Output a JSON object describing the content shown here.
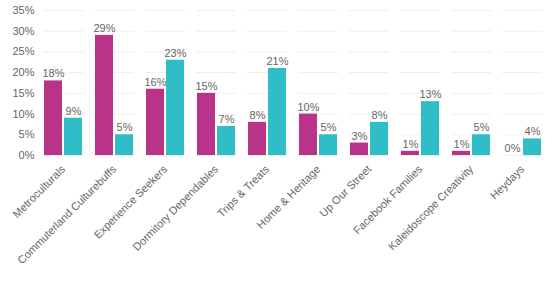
{
  "chart_data": {
    "type": "bar",
    "categories": [
      "Metroculturals",
      "Commuterland Culturebuffs",
      "Experience Seekers",
      "Dormitory Dependables",
      "Trips & Treats",
      "Home & Heritage",
      "Up Our Street",
      "Facebook Families",
      "Kaleidoscope Creativity",
      "Heydays"
    ],
    "series": [
      {
        "color": "#b93389",
        "values": [
          18,
          29,
          16,
          15,
          8,
          10,
          3,
          1,
          1,
          0
        ],
        "value_labels": [
          "18%",
          "29%",
          "16%",
          "15%",
          "8%",
          "10%",
          "3%",
          "1%",
          "1%",
          "0%"
        ]
      },
      {
        "color": "#2fbdc8",
        "values": [
          9,
          5,
          23,
          7,
          21,
          5,
          8,
          13,
          5,
          4
        ],
        "value_labels": [
          "9%",
          "5%",
          "23%",
          "7%",
          "21%",
          "5%",
          "8%",
          "13%",
          "5%",
          "4%"
        ]
      }
    ],
    "ylim": [
      0,
      35
    ],
    "yticks": [
      {
        "value": 0,
        "label": "0%"
      },
      {
        "value": 5,
        "label": "5%"
      },
      {
        "value": 10,
        "label": "10%"
      },
      {
        "value": 15,
        "label": "15%"
      },
      {
        "value": 20,
        "label": "20%"
      },
      {
        "value": 25,
        "label": "25%"
      },
      {
        "value": 30,
        "label": "30%"
      },
      {
        "value": 35,
        "label": "35%"
      }
    ],
    "grid": true,
    "data_labels": true
  }
}
